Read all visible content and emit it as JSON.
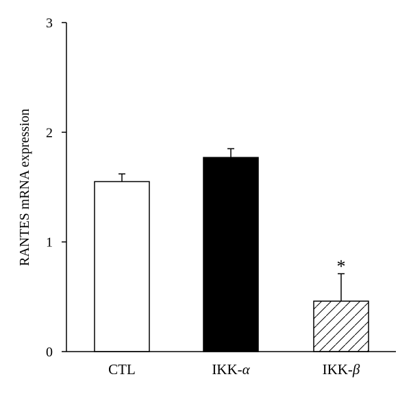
{
  "chart_data": {
    "type": "bar",
    "title": "",
    "xlabel": "",
    "ylabel": "RANTES mRNA expression",
    "ylim": [
      0,
      3
    ],
    "yticks": [
      0,
      1,
      2,
      3
    ],
    "ytick_labels": [
      "0",
      "1",
      "2",
      "3"
    ],
    "grid": false,
    "categories": [
      "CTL",
      "IKK-",
      "IKK-"
    ],
    "category_symbols": [
      "",
      "α",
      "β"
    ],
    "values": [
      1.55,
      1.77,
      0.46
    ],
    "errors": [
      0.07,
      0.08,
      0.25
    ],
    "fills": [
      "white",
      "black",
      "hatched"
    ],
    "annotations": [
      {
        "category_index": 2,
        "text": "*"
      }
    ]
  }
}
